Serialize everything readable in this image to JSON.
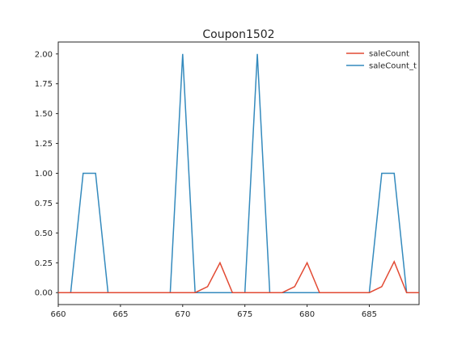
{
  "chart_data": {
    "type": "line",
    "title": "Coupon1502",
    "xlabel": "",
    "ylabel": "",
    "xlim": [
      660,
      689
    ],
    "ylim": [
      -0.1,
      2.1
    ],
    "x_ticks": [
      660,
      665,
      670,
      675,
      680,
      685
    ],
    "y_ticks": [
      0.0,
      0.25,
      0.5,
      0.75,
      1.0,
      1.25,
      1.5,
      1.75,
      2.0
    ],
    "x_tick_labels": [
      "660",
      "665",
      "670",
      "675",
      "680",
      "685"
    ],
    "y_tick_labels": [
      "0.00",
      "0.25",
      "0.50",
      "0.75",
      "1.00",
      "1.25",
      "1.50",
      "1.75",
      "2.00"
    ],
    "grid": false,
    "legend_position": "top-right",
    "x": [
      660,
      661,
      662,
      663,
      664,
      665,
      666,
      667,
      668,
      669,
      670,
      671,
      672,
      673,
      674,
      675,
      676,
      677,
      678,
      679,
      680,
      681,
      682,
      683,
      684,
      685,
      686,
      687,
      688,
      689
    ],
    "series": [
      {
        "name": "saleCount",
        "color": "#e24a33",
        "values": [
          0,
          0,
          0,
          0,
          0,
          0,
          0,
          0,
          0,
          0,
          0,
          0,
          0.05,
          0.25,
          0,
          0,
          0,
          0,
          0,
          0.05,
          0.25,
          0,
          0,
          0,
          0,
          0,
          0.05,
          0.26,
          0,
          0
        ]
      },
      {
        "name": "saleCount_t",
        "color": "#348abd",
        "values": [
          0,
          0,
          1,
          1,
          0,
          0,
          0,
          0,
          0,
          0,
          2,
          0,
          0,
          0,
          0,
          0,
          2,
          0,
          0,
          0,
          0,
          0,
          0,
          0,
          0,
          0,
          1,
          1,
          0,
          0
        ]
      }
    ]
  }
}
